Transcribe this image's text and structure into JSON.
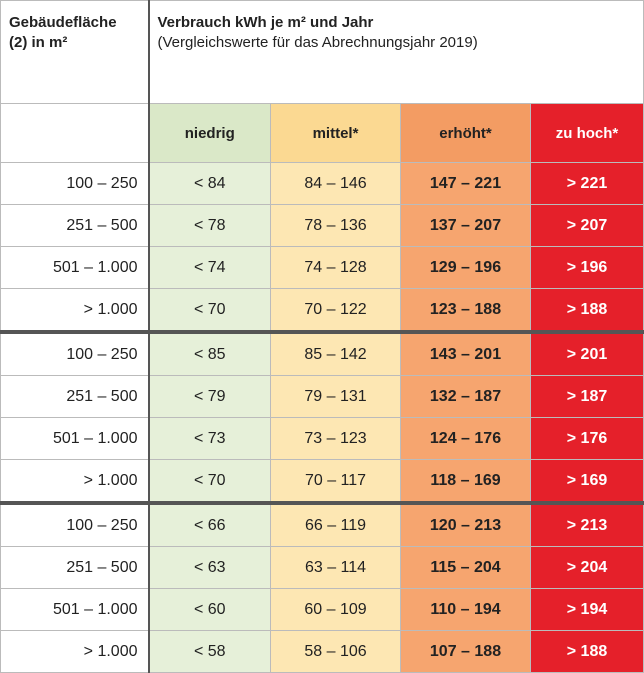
{
  "header": {
    "area_line1": "Gebäudefläche",
    "area_line2": "(2) in m²",
    "title": "Verbrauch kWh je m² und Jahr",
    "subtitle": "(Vergleichswerte für das Abrechnungsjahr 2019)"
  },
  "columns": [
    "niedrig",
    "mittel*",
    "erhöht*",
    "zu hoch*"
  ],
  "groups": [
    {
      "rows": [
        [
          "100 – 250",
          "< 84",
          "84 – 146",
          "147 – 221",
          "> 221"
        ],
        [
          "251 – 500",
          "< 78",
          "78 – 136",
          "137 – 207",
          "> 207"
        ],
        [
          "501 – 1.000",
          "< 74",
          "74 – 128",
          "129 – 196",
          "> 196"
        ],
        [
          "> 1.000",
          "< 70",
          "70 – 122",
          "123 – 188",
          "> 188"
        ]
      ]
    },
    {
      "rows": [
        [
          "100 – 250",
          "< 85",
          "85 – 142",
          "143 – 201",
          "> 201"
        ],
        [
          "251 – 500",
          "< 79",
          "79 – 131",
          "132 – 187",
          "> 187"
        ],
        [
          "501 – 1.000",
          "< 73",
          "73 – 123",
          "124 – 176",
          "> 176"
        ],
        [
          "> 1.000",
          "< 70",
          "70 – 117",
          "118 – 169",
          "> 169"
        ]
      ]
    },
    {
      "rows": [
        [
          "100 – 250",
          "< 66",
          "66 – 119",
          "120 – 213",
          "> 213"
        ],
        [
          "251 – 500",
          "< 63",
          "63 – 114",
          "115 – 204",
          "> 204"
        ],
        [
          "501 – 1.000",
          "< 60",
          "60 – 109",
          "110 – 194",
          "> 194"
        ],
        [
          "> 1.000",
          "< 58",
          "58 – 106",
          "107 – 188",
          "> 188"
        ]
      ]
    }
  ]
}
